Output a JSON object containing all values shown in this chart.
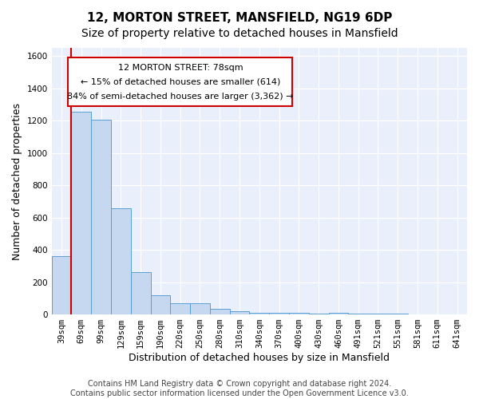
{
  "title": "12, MORTON STREET, MANSFIELD, NG19 6DP",
  "subtitle": "Size of property relative to detached houses in Mansfield",
  "xlabel": "Distribution of detached houses by size in Mansfield",
  "ylabel": "Number of detached properties",
  "categories": [
    "39sqm",
    "69sqm",
    "99sqm",
    "129sqm",
    "159sqm",
    "190sqm",
    "220sqm",
    "250sqm",
    "280sqm",
    "310sqm",
    "340sqm",
    "370sqm",
    "400sqm",
    "430sqm",
    "460sqm",
    "491sqm",
    "521sqm",
    "551sqm",
    "581sqm",
    "611sqm",
    "641sqm"
  ],
  "values": [
    360,
    1255,
    1205,
    655,
    262,
    120,
    72,
    72,
    35,
    20,
    12,
    8,
    10,
    5,
    10,
    3,
    3,
    3,
    1,
    1,
    1
  ],
  "bar_color": "#c5d8f0",
  "bar_edge_color": "#5a9fd4",
  "red_line_index": 1,
  "annotation_line1": "12 MORTON STREET: 78sqm",
  "annotation_line2": "← 15% of detached houses are smaller (614)",
  "annotation_line3": "84% of semi-detached houses are larger (3,362) →",
  "annotation_box_color": "#ffffff",
  "annotation_box_edge": "#cc0000",
  "background_color": "#eaf0fb",
  "grid_color": "#ffffff",
  "ylim": [
    0,
    1650
  ],
  "yticks": [
    0,
    200,
    400,
    600,
    800,
    1000,
    1200,
    1400,
    1600
  ],
  "footer_line1": "Contains HM Land Registry data © Crown copyright and database right 2024.",
  "footer_line2": "Contains public sector information licensed under the Open Government Licence v3.0.",
  "title_fontsize": 11,
  "subtitle_fontsize": 10,
  "xlabel_fontsize": 9,
  "ylabel_fontsize": 9,
  "tick_fontsize": 7.5,
  "footer_fontsize": 7
}
